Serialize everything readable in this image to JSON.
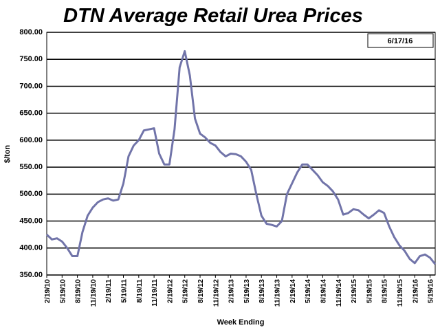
{
  "chart_data": {
    "type": "line",
    "title": "DTN Average Retail Urea Prices",
    "annotation": "6/17/16",
    "y_label": "$/ton",
    "x_label": "Week Ending",
    "color": "#7174a9",
    "grid": true,
    "ylim": [
      350,
      800
    ],
    "yticks": [
      {
        "value": 350,
        "label": "350.00"
      },
      {
        "value": 400,
        "label": "400.00"
      },
      {
        "value": 450,
        "label": "450.00"
      },
      {
        "value": 500,
        "label": "500.00"
      },
      {
        "value": 550,
        "label": "550.00"
      },
      {
        "value": 600,
        "label": "600.00"
      },
      {
        "value": 650,
        "label": "650.00"
      },
      {
        "value": 700,
        "label": "700.00"
      },
      {
        "value": 750,
        "label": "750.00"
      },
      {
        "value": 800,
        "label": "800.00"
      }
    ],
    "categories": [
      "2/19/10",
      null,
      null,
      "5/19/10",
      null,
      null,
      "8/19/10",
      null,
      null,
      "11/19/10",
      null,
      null,
      "2/19/11",
      null,
      null,
      "5/19/11",
      null,
      null,
      "8/19/11",
      null,
      null,
      "11/19/11",
      null,
      null,
      "2/19/12",
      null,
      null,
      "5/19/12",
      null,
      null,
      "8/19/12",
      null,
      null,
      "11/19/12",
      null,
      null,
      "2/19/13",
      null,
      null,
      "5/19/13",
      null,
      null,
      "8/19/13",
      null,
      null,
      "11/19/13",
      null,
      null,
      "2/19/14",
      null,
      null,
      "5/19/14",
      null,
      null,
      "8/19/14",
      null,
      null,
      "11/19/14",
      null,
      null,
      "2/19/15",
      null,
      null,
      "5/19/15",
      null,
      null,
      "8/19/15",
      null,
      null,
      "11/19/15",
      null,
      null,
      "2/19/16",
      null,
      null,
      "5/19/16",
      null
    ],
    "values": [
      425,
      416,
      418,
      412,
      400,
      385,
      385,
      430,
      460,
      475,
      485,
      490,
      492,
      488,
      490,
      520,
      570,
      590,
      600,
      618,
      620,
      622,
      575,
      555,
      555,
      620,
      735,
      765,
      720,
      640,
      612,
      605,
      595,
      590,
      578,
      570,
      575,
      574,
      570,
      560,
      545,
      500,
      460,
      445,
      443,
      440,
      450,
      500,
      520,
      540,
      555,
      555,
      545,
      535,
      522,
      515,
      505,
      490,
      462,
      465,
      472,
      470,
      462,
      455,
      462,
      470,
      465,
      440,
      420,
      405,
      395,
      380,
      372,
      385,
      388,
      382,
      370
    ]
  }
}
